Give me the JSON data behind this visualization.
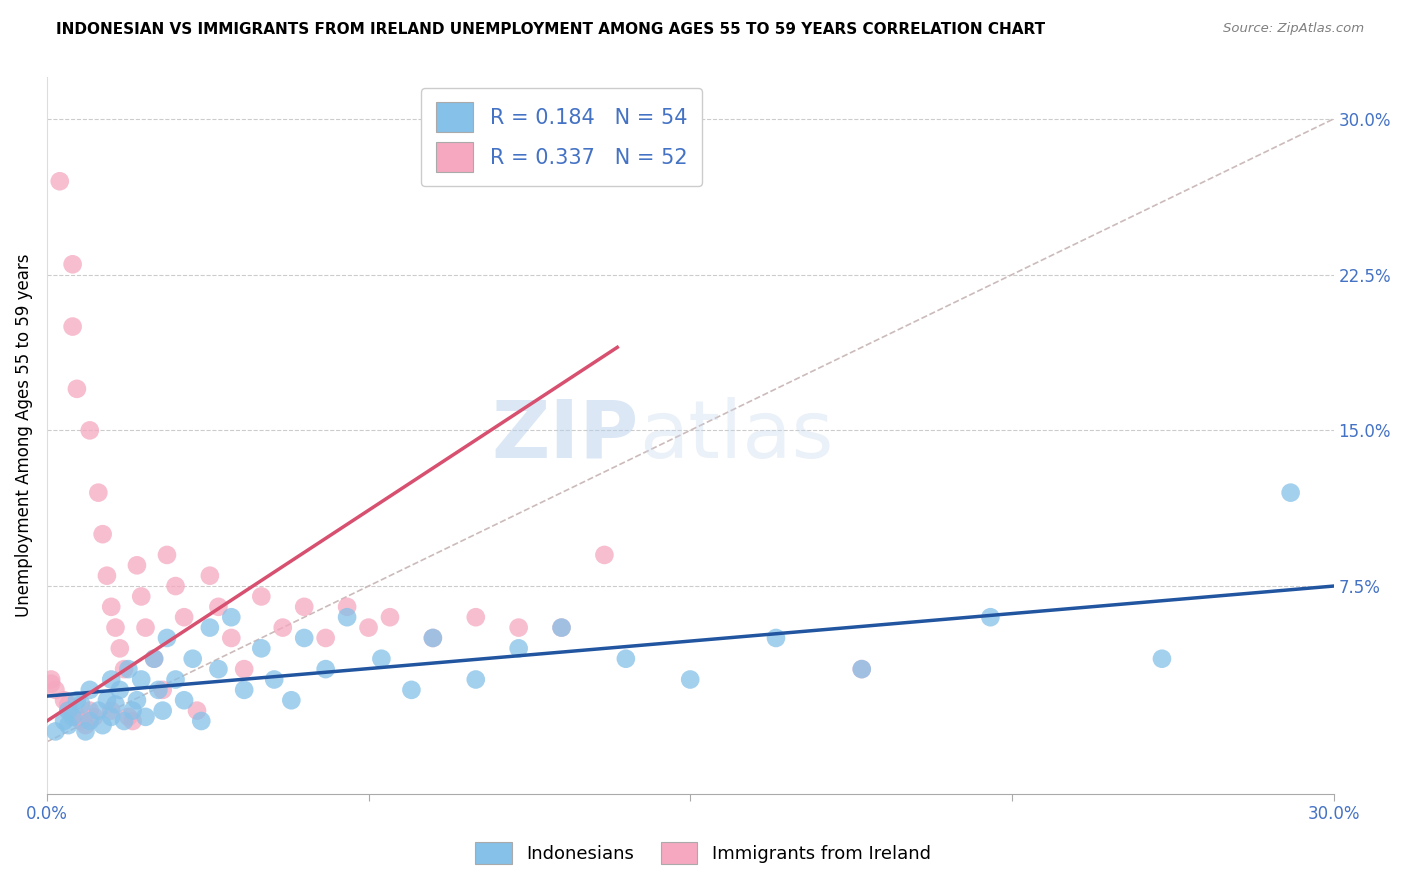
{
  "title": "INDONESIAN VS IMMIGRANTS FROM IRELAND UNEMPLOYMENT AMONG AGES 55 TO 59 YEARS CORRELATION CHART",
  "source": "Source: ZipAtlas.com",
  "ylabel": "Unemployment Among Ages 55 to 59 years",
  "xlim": [
    0.0,
    0.3
  ],
  "ylim": [
    -0.025,
    0.32
  ],
  "blue_R": "0.184",
  "blue_N": "54",
  "pink_R": "0.337",
  "pink_N": "52",
  "blue_color": "#85C1E8",
  "pink_color": "#F5A8C0",
  "blue_line_color": "#2255A0",
  "pink_line_color": "#D85070",
  "ref_line_color": "#CCBBBB",
  "legend_label_blue": "Indonesians",
  "legend_label_pink": "Immigrants from Ireland",
  "blue_trend_x": [
    0.0,
    0.3
  ],
  "blue_trend_y": [
    0.022,
    0.075
  ],
  "pink_trend_x": [
    0.0,
    0.133
  ],
  "pink_trend_y": [
    0.01,
    0.19
  ],
  "title_fontsize": 11,
  "tick_fontsize": 12,
  "label_fontsize": 12,
  "value_color": "#4472C4",
  "grid_color": "#CCCCCC",
  "background_color": "#FFFFFF",
  "blue_x": [
    0.002,
    0.004,
    0.005,
    0.005,
    0.006,
    0.007,
    0.008,
    0.009,
    0.01,
    0.01,
    0.012,
    0.013,
    0.014,
    0.015,
    0.015,
    0.016,
    0.017,
    0.018,
    0.019,
    0.02,
    0.021,
    0.022,
    0.023,
    0.025,
    0.026,
    0.027,
    0.028,
    0.03,
    0.032,
    0.034,
    0.036,
    0.038,
    0.04,
    0.043,
    0.046,
    0.05,
    0.053,
    0.057,
    0.06,
    0.065,
    0.07,
    0.078,
    0.085,
    0.09,
    0.1,
    0.11,
    0.12,
    0.135,
    0.15,
    0.17,
    0.19,
    0.22,
    0.26,
    0.29
  ],
  "blue_y": [
    0.005,
    0.01,
    0.008,
    0.015,
    0.012,
    0.02,
    0.018,
    0.005,
    0.01,
    0.025,
    0.015,
    0.008,
    0.02,
    0.012,
    0.03,
    0.018,
    0.025,
    0.01,
    0.035,
    0.015,
    0.02,
    0.03,
    0.012,
    0.04,
    0.025,
    0.015,
    0.05,
    0.03,
    0.02,
    0.04,
    0.01,
    0.055,
    0.035,
    0.06,
    0.025,
    0.045,
    0.03,
    0.02,
    0.05,
    0.035,
    0.06,
    0.04,
    0.025,
    0.05,
    0.03,
    0.045,
    0.055,
    0.04,
    0.03,
    0.05,
    0.035,
    0.06,
    0.04,
    0.12
  ],
  "pink_x": [
    0.001,
    0.001,
    0.002,
    0.003,
    0.004,
    0.005,
    0.005,
    0.006,
    0.006,
    0.007,
    0.007,
    0.008,
    0.009,
    0.01,
    0.01,
    0.011,
    0.012,
    0.013,
    0.014,
    0.015,
    0.015,
    0.016,
    0.017,
    0.018,
    0.019,
    0.02,
    0.021,
    0.022,
    0.023,
    0.025,
    0.027,
    0.028,
    0.03,
    0.032,
    0.035,
    0.038,
    0.04,
    0.043,
    0.046,
    0.05,
    0.055,
    0.06,
    0.065,
    0.07,
    0.075,
    0.08,
    0.09,
    0.1,
    0.11,
    0.12,
    0.13,
    0.19
  ],
  "pink_y": [
    0.03,
    0.028,
    0.025,
    0.27,
    0.02,
    0.018,
    0.015,
    0.23,
    0.2,
    0.17,
    0.012,
    0.01,
    0.008,
    0.15,
    0.015,
    0.012,
    0.12,
    0.1,
    0.08,
    0.065,
    0.015,
    0.055,
    0.045,
    0.035,
    0.012,
    0.01,
    0.085,
    0.07,
    0.055,
    0.04,
    0.025,
    0.09,
    0.075,
    0.06,
    0.015,
    0.08,
    0.065,
    0.05,
    0.035,
    0.07,
    0.055,
    0.065,
    0.05,
    0.065,
    0.055,
    0.06,
    0.05,
    0.06,
    0.055,
    0.055,
    0.09,
    0.035
  ]
}
